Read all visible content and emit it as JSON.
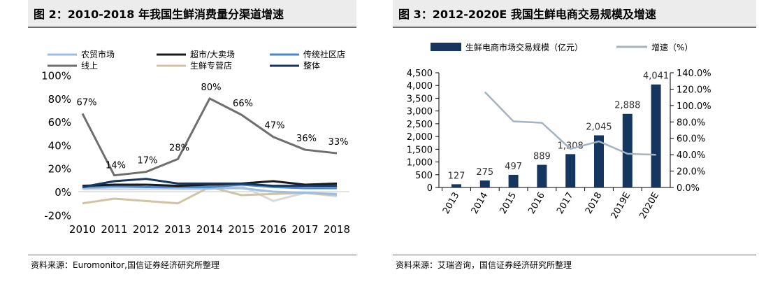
{
  "left": {
    "title": "图 2：2010-2018 年我国生鲜消费量分渠道增速",
    "source": "资料来源：Euromonitor,国信证券经济研究所整理"
  },
  "right": {
    "title": "图 3：2012-2020E 我国生鲜电商交易规模及增速",
    "source": "资料来源：艾瑞咨询，国信证券经济研究所整理"
  },
  "chart_data": [
    {
      "type": "line",
      "title": "图 2：2010-2018 年我国生鲜消费量分渠道增速",
      "x": [
        "2010",
        "2011",
        "2012",
        "2013",
        "2014",
        "2015",
        "2016",
        "2017",
        "2018"
      ],
      "ylim": [
        -20,
        100
      ],
      "yticks": [
        "-20%",
        "0%",
        "20%",
        "40%",
        "60%",
        "80%",
        "100%"
      ],
      "legend_position": "top",
      "series": [
        {
          "name": "农贸市场",
          "color": "#9cbde4",
          "values": [
            3,
            4,
            4,
            3,
            3,
            3,
            0,
            -1,
            -2
          ]
        },
        {
          "name": "超市/大卖场",
          "color": "#1a1a1a",
          "values": [
            5,
            6,
            6,
            5,
            6,
            7,
            9,
            6,
            7
          ]
        },
        {
          "name": "传统社区店",
          "color": "#4a86c8",
          "values": [
            4,
            5,
            4,
            4,
            4,
            6,
            4,
            3,
            3
          ]
        },
        {
          "name": "线上",
          "color": "#6e6e6e",
          "values": [
            67,
            14,
            17,
            28,
            80,
            66,
            47,
            36,
            33
          ]
        },
        {
          "name": "生鲜专营店",
          "color": "#cfc4a3",
          "values": [
            -10,
            -6,
            -8,
            -10,
            4,
            -3,
            -2,
            -1,
            -3
          ]
        },
        {
          "name": "整体",
          "color": "#14365f",
          "values": [
            4,
            9,
            11,
            7,
            7,
            7,
            5,
            5,
            5
          ]
        }
      ],
      "data_labels": {
        "series": "线上",
        "labels": [
          "67%",
          "14%",
          "17%",
          "28%",
          "80%",
          "66%",
          "47%",
          "36%",
          "33%"
        ]
      },
      "extra_series": [
        {
          "name": "",
          "color": "#d9d9d9",
          "values": [
            2,
            2,
            2,
            2,
            2,
            5,
            -8,
            -1,
            -4
          ]
        }
      ]
    },
    {
      "type": "bar",
      "title": "图 3：2012-2020E 我国生鲜电商交易规模及增速",
      "categories": [
        "2013",
        "2014",
        "2015",
        "2016",
        "2017",
        "2018",
        "2019E",
        "2020E"
      ],
      "ylim": [
        0,
        4500
      ],
      "y2lim": [
        0,
        140
      ],
      "yticks": [
        "0",
        "500",
        "1,000",
        "1,500",
        "2,000",
        "2,500",
        "3,000",
        "3,500",
        "4,000",
        "4,500"
      ],
      "y2ticks": [
        "0.0%",
        "20.0%",
        "40.0%",
        "60.0%",
        "80.0%",
        "100.0%",
        "120.0%",
        "140.0%"
      ],
      "legend_position": "top",
      "series": [
        {
          "name": "生鲜电商市场交易规模（亿元）",
          "color": "#14365f",
          "values": [
            127,
            275,
            497,
            889,
            1308,
            2045,
            2888,
            4041
          ],
          "labels": [
            "127",
            "275",
            "497",
            "889",
            "1,308",
            "2,045",
            "2,888",
            "4,041"
          ]
        },
        {
          "name": "增速（%）",
          "color": "#a4b3c2",
          "axis": "right",
          "values": [
            null,
            116.5,
            80.7,
            78.9,
            47.1,
            56.3,
            41.2,
            39.9
          ]
        }
      ]
    }
  ]
}
